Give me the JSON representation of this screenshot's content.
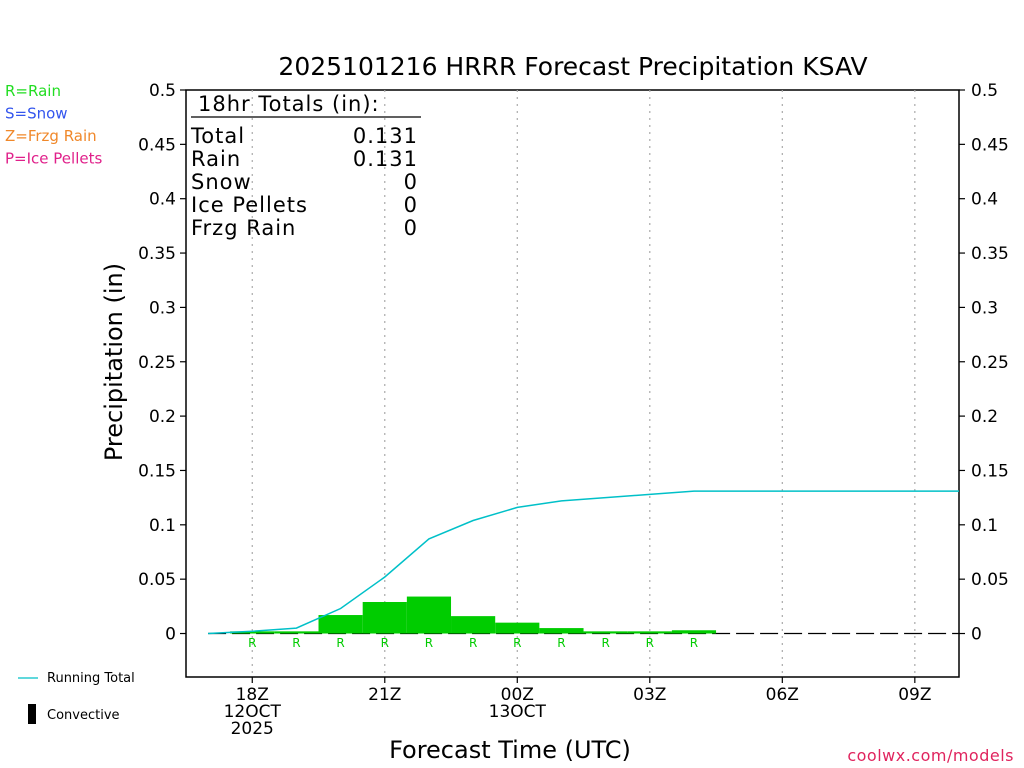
{
  "chart_data": {
    "type": "bar",
    "title": "2025101216 HRRR Forecast Precipitation KSAV",
    "xlabel": "Forecast Time (UTC)",
    "ylabel": "Precipitation (in)",
    "ylim": [
      -0.04,
      0.5
    ],
    "y_ticks": [
      0,
      0.05,
      0.1,
      0.15,
      0.2,
      0.25,
      0.3,
      0.35,
      0.4,
      0.45,
      0.5
    ],
    "y_tick_labels": [
      "0",
      "0.05",
      "0.1",
      "0.15",
      "0.2",
      "0.25",
      "0.3",
      "0.35",
      "0.4",
      "0.45",
      "0.5"
    ],
    "xlim_hours": [
      16.5,
      34
    ],
    "x_ticks": [
      {
        "hour": 18,
        "lines": [
          "18Z",
          "12OCT",
          "2025"
        ]
      },
      {
        "hour": 21,
        "lines": [
          "21Z"
        ]
      },
      {
        "hour": 24,
        "lines": [
          "00Z",
          "13OCT"
        ]
      },
      {
        "hour": 27,
        "lines": [
          "03Z"
        ]
      },
      {
        "hour": 30,
        "lines": [
          "06Z"
        ]
      },
      {
        "hour": 33,
        "lines": [
          "09Z"
        ]
      }
    ],
    "grid": "vertical dotted at tick hours",
    "series": [
      {
        "name": "Hourly",
        "color": "#00cc00",
        "bars": [
          {
            "start": 17.5,
            "end": 18.5,
            "value": 0.002
          },
          {
            "start": 18.5,
            "end": 19.5,
            "value": 0.002
          },
          {
            "start": 19.5,
            "end": 20.5,
            "value": 0.017
          },
          {
            "start": 20.5,
            "end": 21.5,
            "value": 0.029
          },
          {
            "start": 21.5,
            "end": 22.5,
            "value": 0.034
          },
          {
            "start": 22.5,
            "end": 23.5,
            "value": 0.016
          },
          {
            "start": 23.5,
            "end": 24.5,
            "value": 0.01
          },
          {
            "start": 24.5,
            "end": 25.5,
            "value": 0.005
          },
          {
            "start": 25.5,
            "end": 26.5,
            "value": 0.002
          },
          {
            "start": 26.5,
            "end": 27.5,
            "value": 0.002
          },
          {
            "start": 27.5,
            "end": 28.5,
            "value": 0.003
          }
        ]
      },
      {
        "name": "Running Total",
        "color": "#00c0c8",
        "points": [
          [
            17,
            0.0
          ],
          [
            18,
            0.002
          ],
          [
            19,
            0.005
          ],
          [
            20,
            0.023
          ],
          [
            21,
            0.052
          ],
          [
            22,
            0.087
          ],
          [
            23,
            0.104
          ],
          [
            24,
            0.116
          ],
          [
            25,
            0.122
          ],
          [
            26,
            0.125
          ],
          [
            27,
            0.128
          ],
          [
            28,
            0.131
          ],
          [
            29,
            0.131
          ],
          [
            30,
            0.131
          ],
          [
            31,
            0.131
          ],
          [
            32,
            0.131
          ],
          [
            33,
            0.131
          ],
          [
            34,
            0.131
          ]
        ]
      }
    ],
    "ptype_markers": {
      "hours": [
        18,
        19,
        20,
        21,
        22,
        23,
        24,
        25,
        26,
        27,
        28
      ],
      "label": "R",
      "color": "#00cc00"
    },
    "totals_box": {
      "heading": "18hr Totals (in):",
      "rows": [
        {
          "label": "Total",
          "value": "0.131"
        },
        {
          "label": "Rain",
          "value": "0.131"
        },
        {
          "label": "Snow",
          "value": "0"
        },
        {
          "label": "Ice Pellets",
          "value": "0"
        },
        {
          "label": "Frzg Rain",
          "value": "0"
        }
      ]
    }
  },
  "legend_top": [
    {
      "text": "R=Rain",
      "color": "#22dd22"
    },
    {
      "text": "S=Snow",
      "color": "#3355ee"
    },
    {
      "text": "Z=Frzg Rain",
      "color": "#f0882a"
    },
    {
      "text": "P=Ice Pellets",
      "color": "#e0208a"
    }
  ],
  "legend_bottom": {
    "running_total": "Running Total",
    "convective": "Convective"
  },
  "credit": "coolwx.com/models"
}
